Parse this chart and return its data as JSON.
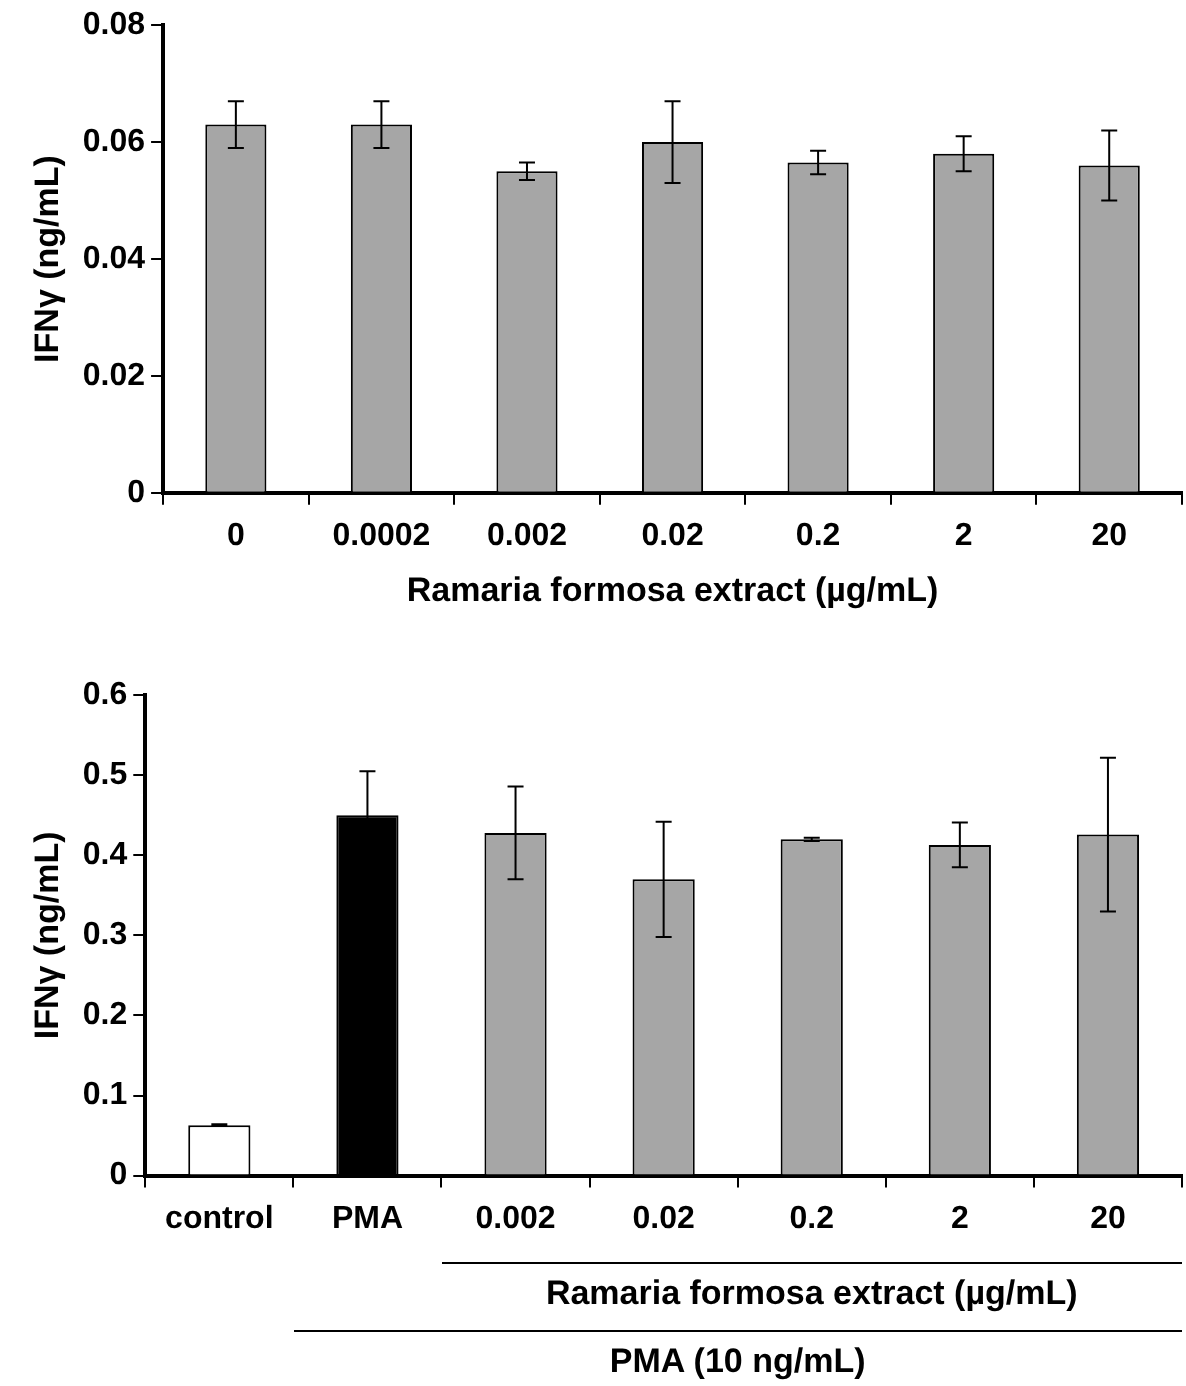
{
  "chart_data": [
    {
      "type": "bar",
      "ylabel": "IFNγ (ng/mL)",
      "xlabel": "Ramaria formosa extract (µg/mL)",
      "categories": [
        "0",
        "0.0002",
        "0.002",
        "0.02",
        "0.2",
        "2",
        "20"
      ],
      "values": [
        0.063,
        0.063,
        0.055,
        0.06,
        0.0565,
        0.058,
        0.056
      ],
      "errors": [
        0.004,
        0.004,
        0.0015,
        0.007,
        0.002,
        0.003,
        0.006
      ],
      "color": "#a6a6a6",
      "ylim": [
        0,
        0.08
      ],
      "yticks": [
        0,
        0.02,
        0.04,
        0.06,
        0.08
      ],
      "grid": false,
      "legend": false
    },
    {
      "type": "bar",
      "ylabel": "IFNγ (ng/mL)",
      "categories": [
        "control",
        "PMA",
        "0.002",
        "0.02",
        "0.2",
        "2",
        "20"
      ],
      "values": [
        0.063,
        0.45,
        0.428,
        0.37,
        0.42,
        0.413,
        0.426
      ],
      "errors": [
        0.001,
        0.055,
        0.058,
        0.072,
        0.002,
        0.028,
        0.096
      ],
      "colors": [
        "#ffffff",
        "#000000",
        "#a6a6a6",
        "#a6a6a6",
        "#a6a6a6",
        "#a6a6a6",
        "#a6a6a6"
      ],
      "ylim": [
        0,
        0.6
      ],
      "yticks": [
        0,
        0.1,
        0.2,
        0.3,
        0.4,
        0.5,
        0.6
      ],
      "grid": false,
      "legend": false,
      "annotations": [
        "Ramaria formosa extract (µg/mL)",
        "PMA (10 ng/mL)"
      ]
    }
  ]
}
